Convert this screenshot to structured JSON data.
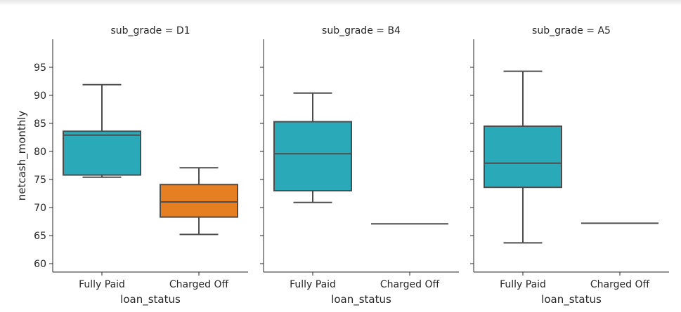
{
  "chart_data": {
    "type": "box",
    "xlabel": "loan_status",
    "ylabel": "netcash_monthly",
    "ylim": [
      58.5,
      100
    ],
    "yticks": [
      60,
      65,
      70,
      75,
      80,
      85,
      90,
      95
    ],
    "categories": [
      "Fully Paid",
      "Charged Off"
    ],
    "colors": {
      "Fully Paid": "#2aa9b8",
      "Charged Off": "#e67e22"
    },
    "grid": false,
    "legend": "none",
    "panels": [
      {
        "title": "sub_grade = D1",
        "boxes": [
          {
            "category": "Fully Paid",
            "min": 75.4,
            "q1": 75.8,
            "median": 82.9,
            "q3": 83.6,
            "max": 91.9
          },
          {
            "category": "Charged Off",
            "min": 65.2,
            "q1": 68.3,
            "median": 71.0,
            "q3": 74.1,
            "max": 77.1
          }
        ]
      },
      {
        "title": "sub_grade = B4",
        "boxes": [
          {
            "category": "Fully Paid",
            "min": 70.9,
            "q1": 73.0,
            "median": 79.6,
            "q3": 85.3,
            "max": 90.4
          },
          {
            "category": "Charged Off",
            "min": 67.1,
            "q1": 67.1,
            "median": 67.1,
            "q3": 67.1,
            "max": 67.1
          }
        ]
      },
      {
        "title": "sub_grade = A5",
        "boxes": [
          {
            "category": "Fully Paid",
            "min": 63.7,
            "q1": 73.6,
            "median": 77.9,
            "q3": 84.5,
            "max": 94.3
          },
          {
            "category": "Charged Off",
            "min": 67.2,
            "q1": 67.2,
            "median": 67.2,
            "q3": 67.2,
            "max": 67.2
          }
        ]
      }
    ]
  }
}
